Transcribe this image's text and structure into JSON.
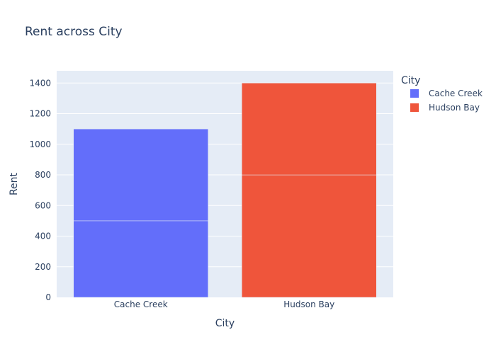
{
  "chart_data": {
    "type": "bar",
    "title": "Rent across City",
    "xlabel": "City",
    "ylabel": "Rent",
    "ylim": [
      0,
      1480
    ],
    "yticks": [
      0,
      200,
      400,
      600,
      800,
      1000,
      1200,
      1400
    ],
    "categories": [
      "Cache Creek",
      "Hudson Bay"
    ],
    "barmode": "stack",
    "grid": true,
    "legend": {
      "title": "City",
      "placement": "top-right"
    },
    "series": [
      {
        "name": "Cache Creek",
        "color": "#636efa",
        "category": "Cache Creek",
        "segments": [
          500,
          600
        ]
      },
      {
        "name": "Hudson Bay",
        "color": "#ef553b",
        "category": "Hudson Bay",
        "segments": [
          800,
          600
        ]
      }
    ]
  }
}
